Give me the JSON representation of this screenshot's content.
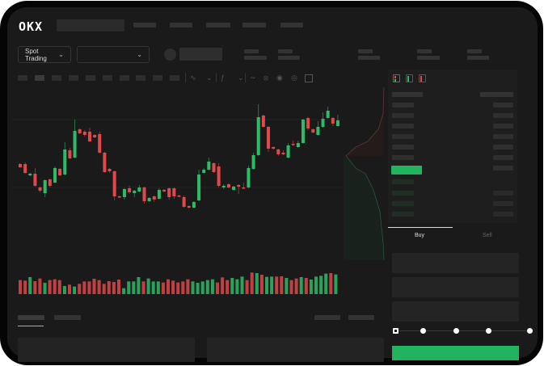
{
  "header": {
    "logo": "OKX"
  },
  "toolbar": {
    "market_type": "Spot Trading"
  },
  "colors": {
    "up": "#2dbb68",
    "down": "#e0484a",
    "accent": "#22b35e",
    "background": "#1a1a1a"
  },
  "order_form": {
    "tabs": [
      {
        "label": "Buy",
        "active": true
      },
      {
        "label": "Sell",
        "active": false
      }
    ],
    "slider_value": 0,
    "slider_stops": 5
  },
  "chart_data": {
    "type": "candlestick",
    "grid": true,
    "ohlc": [
      [
        97,
        98,
        92,
        93
      ],
      [
        97,
        99,
        85,
        86
      ],
      [
        83,
        86,
        82,
        85
      ],
      [
        85,
        92,
        69,
        70
      ],
      [
        68,
        69,
        62,
        64
      ],
      [
        61,
        78,
        56,
        77
      ],
      [
        78,
        79,
        68,
        70
      ],
      [
        74,
        94,
        73,
        92
      ],
      [
        91,
        92,
        82,
        83
      ],
      [
        84,
        124,
        83,
        115
      ],
      [
        114,
        117,
        103,
        104
      ],
      [
        105,
        152,
        104,
        138
      ],
      [
        140,
        141,
        134,
        135
      ],
      [
        137,
        139,
        131,
        133
      ],
      [
        137,
        142,
        124,
        125
      ],
      [
        133,
        134,
        129,
        130
      ],
      [
        134,
        137,
        110,
        111
      ],
      [
        111,
        112,
        86,
        87
      ],
      [
        91,
        92,
        86,
        88
      ],
      [
        88,
        89,
        52,
        57
      ],
      [
        57,
        58,
        55,
        56
      ],
      [
        56,
        67,
        53,
        66
      ],
      [
        67,
        70,
        60,
        62
      ],
      [
        61,
        65,
        56,
        64
      ],
      [
        63,
        71,
        62,
        68
      ],
      [
        68,
        69,
        48,
        51
      ],
      [
        51,
        56,
        50,
        55
      ],
      [
        57,
        58,
        50,
        53
      ],
      [
        54,
        67,
        53,
        65
      ],
      [
        65,
        66,
        62,
        63
      ],
      [
        67,
        68,
        53,
        56
      ],
      [
        67,
        68,
        54,
        57
      ],
      [
        58,
        59,
        56,
        57
      ],
      [
        56,
        58,
        43,
        44
      ],
      [
        45,
        46,
        42,
        43
      ],
      [
        43,
        51,
        42,
        50
      ],
      [
        52,
        90,
        51,
        84
      ],
      [
        86,
        92,
        85,
        90
      ],
      [
        90,
        105,
        89,
        100
      ],
      [
        98,
        99,
        86,
        87
      ],
      [
        94,
        98,
        68,
        70
      ],
      [
        68,
        72,
        66,
        70
      ],
      [
        72,
        73,
        67,
        68
      ],
      [
        65,
        70,
        64,
        69
      ],
      [
        71,
        72,
        60,
        69
      ],
      [
        68,
        74,
        66,
        67
      ],
      [
        68,
        95,
        67,
        92
      ],
      [
        91,
        111,
        90,
        108
      ],
      [
        108,
        171,
        107,
        155
      ],
      [
        157,
        158,
        142,
        143
      ],
      [
        143,
        144,
        112,
        116
      ],
      [
        118,
        119,
        115,
        116
      ],
      [
        115,
        116,
        107,
        109
      ],
      [
        111,
        114,
        108,
        109
      ],
      [
        105,
        123,
        104,
        120
      ],
      [
        122,
        126,
        119,
        121
      ],
      [
        118,
        126,
        117,
        123
      ],
      [
        123,
        153,
        122,
        152
      ],
      [
        154,
        155,
        139,
        141
      ],
      [
        140,
        141,
        135,
        136
      ],
      [
        133,
        150,
        132,
        143
      ],
      [
        143,
        161,
        142,
        153
      ],
      [
        154,
        168,
        153,
        163
      ],
      [
        154,
        155,
        144,
        147
      ],
      [
        144,
        158,
        143,
        151
      ]
    ],
    "volume": [
      [
        52,
        "down"
      ],
      [
        50,
        "down"
      ],
      [
        63,
        "up"
      ],
      [
        48,
        "down"
      ],
      [
        58,
        "down"
      ],
      [
        42,
        "up"
      ],
      [
        52,
        "down"
      ],
      [
        55,
        "down"
      ],
      [
        52,
        "down"
      ],
      [
        30,
        "up"
      ],
      [
        35,
        "down"
      ],
      [
        28,
        "up"
      ],
      [
        38,
        "down"
      ],
      [
        47,
        "down"
      ],
      [
        47,
        "down"
      ],
      [
        57,
        "down"
      ],
      [
        52,
        "down"
      ],
      [
        38,
        "down"
      ],
      [
        48,
        "down"
      ],
      [
        45,
        "down"
      ],
      [
        54,
        "down"
      ],
      [
        22,
        "up"
      ],
      [
        47,
        "up"
      ],
      [
        47,
        "up"
      ],
      [
        63,
        "up"
      ],
      [
        47,
        "down"
      ],
      [
        58,
        "up"
      ],
      [
        47,
        "up"
      ],
      [
        47,
        "up"
      ],
      [
        43,
        "down"
      ],
      [
        55,
        "down"
      ],
      [
        50,
        "down"
      ],
      [
        43,
        "down"
      ],
      [
        47,
        "down"
      ],
      [
        55,
        "down"
      ],
      [
        47,
        "up"
      ],
      [
        42,
        "up"
      ],
      [
        47,
        "up"
      ],
      [
        52,
        "up"
      ],
      [
        55,
        "up"
      ],
      [
        43,
        "down"
      ],
      [
        62,
        "down"
      ],
      [
        52,
        "down"
      ],
      [
        60,
        "up"
      ],
      [
        55,
        "up"
      ],
      [
        65,
        "up"
      ],
      [
        52,
        "down"
      ],
      [
        80,
        "down"
      ],
      [
        78,
        "up"
      ],
      [
        72,
        "down"
      ],
      [
        64,
        "up"
      ],
      [
        65,
        "up"
      ],
      [
        65,
        "down"
      ],
      [
        66,
        "down"
      ],
      [
        60,
        "up"
      ],
      [
        52,
        "down"
      ],
      [
        58,
        "down"
      ],
      [
        63,
        "up"
      ],
      [
        60,
        "down"
      ],
      [
        54,
        "up"
      ],
      [
        65,
        "up"
      ],
      [
        68,
        "up"
      ],
      [
        76,
        "up"
      ],
      [
        78,
        "down"
      ],
      [
        73,
        "up"
      ]
    ]
  }
}
